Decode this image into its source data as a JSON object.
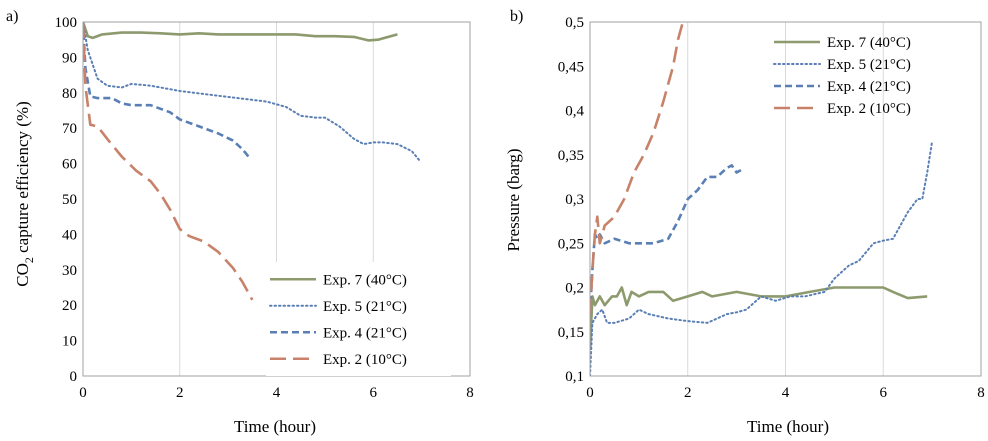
{
  "chart_data": [
    {
      "type": "line",
      "panel_label": "a)",
      "xlabel": "Time (hour)",
      "ylabel_parts": [
        "CO",
        "2",
        " capture efficiency (%)"
      ],
      "xlim": [
        0,
        8
      ],
      "ylim": [
        0,
        100
      ],
      "xticks": [
        0,
        2,
        4,
        6,
        8
      ],
      "xtick_labels": [
        "0",
        "2",
        "4",
        "6",
        "8"
      ],
      "yticks": [
        0,
        10,
        20,
        30,
        40,
        50,
        60,
        70,
        80,
        90,
        100
      ],
      "ytick_labels": [
        "0",
        "10",
        "20",
        "30",
        "40",
        "50",
        "60",
        "70",
        "80",
        "90",
        "100"
      ],
      "grid": "vertical",
      "legend_position": "bottom-right",
      "series": [
        {
          "name": "Exp. 7 (40°C)",
          "color": "#8c9a6e",
          "style": "solid",
          "x": [
            0,
            0.1,
            0.2,
            0.4,
            0.8,
            1.2,
            1.6,
            2.0,
            2.4,
            2.8,
            3.2,
            3.6,
            4.0,
            4.4,
            4.8,
            5.2,
            5.6,
            5.9,
            6.1,
            6.5
          ],
          "y": [
            100,
            96,
            95.5,
            96.5,
            97,
            97,
            96.8,
            96.5,
            96.8,
            96.5,
            96.5,
            96.5,
            96.5,
            96.5,
            96,
            96,
            95.8,
            94.8,
            95,
            96.5
          ]
        },
        {
          "name": "Exp. 5 (21°C)",
          "color": "#5a7fb5",
          "style": "dotted",
          "x": [
            0,
            0.1,
            0.2,
            0.3,
            0.5,
            0.8,
            1.0,
            1.4,
            2.0,
            2.6,
            3.2,
            3.8,
            4.2,
            4.5,
            4.8,
            5.0,
            5.3,
            5.6,
            5.8,
            6.0,
            6.2,
            6.5,
            6.8,
            6.95
          ],
          "y": [
            100,
            92,
            88,
            84,
            82,
            81.5,
            82.5,
            82,
            80.5,
            79.5,
            78.5,
            77.5,
            76,
            73.5,
            73,
            73,
            70.5,
            67,
            65.5,
            66,
            66,
            65.5,
            63.5,
            61
          ]
        },
        {
          "name": "Exp. 4 (21°C)",
          "color": "#5a7fb5",
          "style": "dashed",
          "x": [
            0,
            0.05,
            0.15,
            0.3,
            0.6,
            0.8,
            1.0,
            1.4,
            1.8,
            2.0,
            2.4,
            2.8,
            3.1,
            3.3,
            3.45
          ],
          "y": [
            100,
            87,
            79,
            78.5,
            78.5,
            77,
            76.5,
            76.5,
            74.5,
            72.5,
            70.5,
            68.5,
            66.5,
            64,
            61.5
          ]
        },
        {
          "name": "Exp. 2 (10°C)",
          "color": "#c8826a",
          "style": "longdash",
          "x": [
            0,
            0.05,
            0.15,
            0.3,
            0.5,
            0.8,
            1.1,
            1.4,
            1.6,
            1.8,
            2.0,
            2.2,
            2.5,
            2.8,
            3.1,
            3.3,
            3.5
          ],
          "y": [
            100,
            82,
            71,
            70.5,
            67,
            62,
            58,
            55,
            51.5,
            47,
            41.5,
            39.5,
            38,
            35,
            30.5,
            26.5,
            21.5
          ]
        }
      ]
    },
    {
      "type": "line",
      "panel_label": "b)",
      "xlabel": "Time (hour)",
      "ylabel": "Pressure (barg)",
      "xlim": [
        0,
        8
      ],
      "ylim": [
        0.1,
        0.5
      ],
      "xticks": [
        0,
        2,
        4,
        6,
        8
      ],
      "xtick_labels": [
        "0",
        "2",
        "4",
        "6",
        "8"
      ],
      "yticks": [
        0.1,
        0.15,
        0.2,
        0.25,
        0.3,
        0.35,
        0.4,
        0.45,
        0.5
      ],
      "ytick_labels": [
        "0,1",
        "0,15",
        "0,2",
        "0,25",
        "0,3",
        "0,35",
        "0,4",
        "0,45",
        "0,5"
      ],
      "grid": "vertical",
      "legend_position": "top-right",
      "series": [
        {
          "name": "Exp. 7 (40°C)",
          "color": "#8c9a6e",
          "style": "solid",
          "x": [
            0,
            0.05,
            0.1,
            0.2,
            0.3,
            0.45,
            0.55,
            0.65,
            0.75,
            0.85,
            1.0,
            1.2,
            1.5,
            1.7,
            2.0,
            2.3,
            2.5,
            3.0,
            3.5,
            4.0,
            4.5,
            5.0,
            5.5,
            6.0,
            6.2,
            6.5,
            6.9
          ],
          "y": [
            0.13,
            0.19,
            0.18,
            0.19,
            0.18,
            0.19,
            0.19,
            0.2,
            0.18,
            0.195,
            0.19,
            0.195,
            0.195,
            0.185,
            0.19,
            0.195,
            0.19,
            0.195,
            0.19,
            0.19,
            0.195,
            0.2,
            0.2,
            0.2,
            0.195,
            0.188,
            0.19
          ]
        },
        {
          "name": "Exp. 5 (21°C)",
          "color": "#5a7fb5",
          "style": "dotted",
          "x": [
            0,
            0.05,
            0.15,
            0.25,
            0.35,
            0.5,
            0.8,
            1.0,
            1.2,
            1.6,
            2.0,
            2.4,
            2.8,
            3.0,
            3.2,
            3.5,
            3.8,
            4.1,
            4.4,
            4.8,
            5.0,
            5.3,
            5.5,
            5.8,
            6.0,
            6.2,
            6.5,
            6.7,
            6.8,
            6.9,
            7.0
          ],
          "y": [
            0.1,
            0.16,
            0.17,
            0.175,
            0.16,
            0.16,
            0.165,
            0.175,
            0.17,
            0.165,
            0.162,
            0.16,
            0.17,
            0.172,
            0.175,
            0.19,
            0.185,
            0.19,
            0.19,
            0.195,
            0.21,
            0.225,
            0.23,
            0.25,
            0.253,
            0.255,
            0.285,
            0.3,
            0.3,
            0.33,
            0.365
          ]
        },
        {
          "name": "Exp. 4 (21°C)",
          "color": "#5a7fb5",
          "style": "dashed",
          "x": [
            0,
            0.05,
            0.1,
            0.15,
            0.2,
            0.3,
            0.5,
            0.8,
            1.0,
            1.3,
            1.6,
            1.8,
            2.0,
            2.2,
            2.4,
            2.6,
            2.8,
            2.9,
            3.0,
            3.1
          ],
          "y": [
            0.17,
            0.22,
            0.26,
            0.255,
            0.26,
            0.25,
            0.255,
            0.25,
            0.25,
            0.25,
            0.255,
            0.275,
            0.3,
            0.31,
            0.325,
            0.325,
            0.335,
            0.338,
            0.33,
            0.333
          ]
        },
        {
          "name": "Exp. 2 (10°C)",
          "color": "#c8826a",
          "style": "longdash",
          "x": [
            0,
            0.05,
            0.1,
            0.15,
            0.2,
            0.3,
            0.5,
            0.7,
            0.9,
            1.1,
            1.3,
            1.5,
            1.6,
            1.7,
            1.8,
            1.85,
            1.9
          ],
          "y": [
            0.17,
            0.22,
            0.26,
            0.28,
            0.25,
            0.27,
            0.28,
            0.3,
            0.33,
            0.35,
            0.375,
            0.41,
            0.43,
            0.45,
            0.48,
            0.49,
            0.5
          ]
        }
      ]
    }
  ]
}
